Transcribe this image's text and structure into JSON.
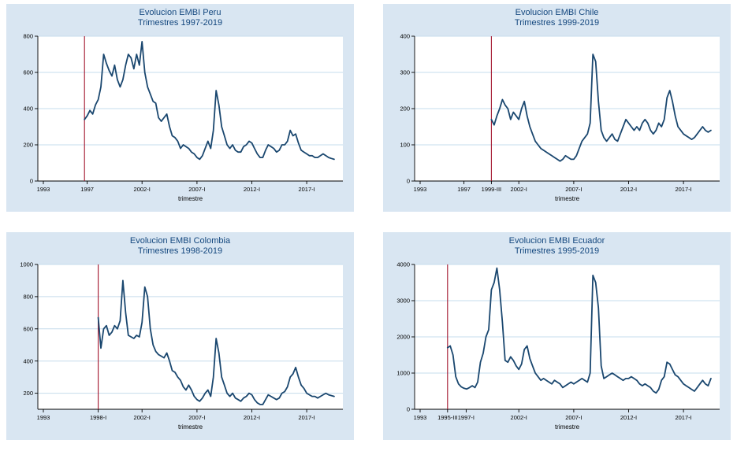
{
  "style": {
    "panel_bg": "#d9e6f2",
    "grid_color": "#c6dcec",
    "line_color": "#1a476f",
    "ref_color": "#a2132b",
    "axis_color": "#000000",
    "title_color": "#13477e"
  },
  "chart_data": [
    {
      "type": "line",
      "title": "Evolucion EMBI Peru",
      "subtitle": "Trimestres 1997-2019",
      "xlabel": "trimestre",
      "ylim": [
        0,
        800
      ],
      "yticks": [
        0,
        200,
        400,
        600,
        800
      ],
      "ytick_labels": [
        "0",
        "200",
        "400",
        "600",
        "800"
      ],
      "xlim": [
        1992.5,
        2020.3
      ],
      "xticks": [
        {
          "v": 1993,
          "label": "1993"
        },
        {
          "v": 1997,
          "label": "1997"
        },
        {
          "v": 2002,
          "label": "2002-I"
        },
        {
          "v": 2007,
          "label": "2007-I"
        },
        {
          "v": 2012,
          "label": "2012-I"
        },
        {
          "v": 2017,
          "label": "2017-I"
        }
      ],
      "ref_line": 1996.75,
      "legend": "none",
      "grid": "horizontal",
      "series": [
        {
          "name": "EMBI Peru",
          "x_start": 1996.75,
          "x_step": 0.25,
          "values": [
            340,
            360,
            390,
            370,
            420,
            450,
            520,
            700,
            650,
            610,
            580,
            640,
            560,
            520,
            560,
            640,
            700,
            680,
            620,
            700,
            640,
            770,
            600,
            520,
            480,
            440,
            430,
            350,
            330,
            350,
            370,
            300,
            250,
            240,
            220,
            180,
            200,
            190,
            180,
            160,
            150,
            130,
            120,
            140,
            180,
            220,
            180,
            280,
            500,
            420,
            300,
            250,
            200,
            180,
            200,
            170,
            160,
            160,
            190,
            200,
            220,
            210,
            180,
            150,
            130,
            130,
            170,
            200,
            190,
            180,
            160,
            170,
            200,
            200,
            220,
            280,
            250,
            260,
            210,
            170,
            160,
            150,
            140,
            140,
            130,
            130,
            140,
            150,
            140,
            130,
            125,
            120
          ]
        }
      ]
    },
    {
      "type": "line",
      "title": "Evolucion EMBI Chile",
      "subtitle": "Trimestres 1999-2019",
      "xlabel": "trimestre",
      "ylim": [
        0,
        400
      ],
      "yticks": [
        0,
        100,
        200,
        300,
        400
      ],
      "ytick_labels": [
        "0",
        "100",
        "200",
        "300",
        "400"
      ],
      "xlim": [
        1992.5,
        2020.3
      ],
      "xticks": [
        {
          "v": 1997,
          "label": "1997"
        },
        {
          "v": 1993,
          "label": "1993"
        },
        {
          "v": 1999.5,
          "label": "1999-III"
        },
        {
          "v": 2002,
          "label": "2002-I"
        },
        {
          "v": 2007,
          "label": "2007-I"
        },
        {
          "v": 2012,
          "label": "2012-I"
        },
        {
          "v": 2017,
          "label": "2017-I"
        }
      ],
      "ref_line": 1999.5,
      "legend": "none",
      "grid": "horizontal",
      "series": [
        {
          "name": "EMBI Chile",
          "x_start": 1999.5,
          "x_step": 0.25,
          "values": [
            170,
            155,
            180,
            200,
            225,
            210,
            200,
            170,
            190,
            180,
            170,
            200,
            220,
            180,
            150,
            130,
            110,
            100,
            90,
            85,
            80,
            75,
            70,
            65,
            60,
            55,
            60,
            70,
            65,
            60,
            60,
            70,
            90,
            110,
            120,
            130,
            160,
            350,
            330,
            220,
            140,
            120,
            110,
            120,
            130,
            115,
            110,
            130,
            150,
            170,
            160,
            150,
            140,
            150,
            140,
            160,
            170,
            160,
            140,
            130,
            140,
            160,
            150,
            170,
            230,
            250,
            220,
            180,
            150,
            140,
            130,
            125,
            120,
            115,
            120,
            130,
            140,
            150,
            140,
            135,
            140
          ]
        }
      ]
    },
    {
      "type": "line",
      "title": "Evolucion EMBI Colombia",
      "subtitle": "Trimestres 1998-2019",
      "xlabel": "trimestre",
      "ylim": [
        100,
        1000
      ],
      "yticks": [
        200,
        400,
        600,
        800,
        1000
      ],
      "ytick_labels": [
        "200",
        "400",
        "600",
        "800",
        "1000"
      ],
      "xlim": [
        1992.5,
        2020.3
      ],
      "xticks": [
        {
          "v": 1993,
          "label": "1993"
        },
        {
          "v": 1998,
          "label": "1998-I"
        },
        {
          "v": 2002,
          "label": "2002-I"
        },
        {
          "v": 2007,
          "label": "2007-I"
        },
        {
          "v": 2012,
          "label": "2012-I"
        },
        {
          "v": 2017,
          "label": "2017-I"
        }
      ],
      "ref_line": 1998.0,
      "legend": "none",
      "grid": "horizontal",
      "series": [
        {
          "name": "EMBI Colombia",
          "x_start": 1998.0,
          "x_step": 0.25,
          "values": [
            670,
            480,
            600,
            620,
            560,
            580,
            620,
            600,
            650,
            900,
            700,
            560,
            550,
            540,
            560,
            550,
            640,
            860,
            800,
            600,
            500,
            460,
            440,
            430,
            420,
            450,
            400,
            340,
            330,
            300,
            280,
            240,
            220,
            250,
            220,
            180,
            160,
            150,
            170,
            200,
            220,
            180,
            300,
            540,
            450,
            300,
            250,
            200,
            180,
            200,
            170,
            160,
            150,
            170,
            180,
            200,
            190,
            160,
            140,
            130,
            130,
            160,
            190,
            180,
            170,
            160,
            170,
            200,
            210,
            240,
            300,
            320,
            360,
            300,
            250,
            230,
            200,
            190,
            180,
            180,
            170,
            180,
            190,
            200,
            190,
            185,
            180
          ]
        }
      ]
    },
    {
      "type": "line",
      "title": "Evolucion EMBI Ecuador",
      "subtitle": "Trimestres 1995-2019",
      "xlabel": "trimestre",
      "ylim": [
        0,
        4000
      ],
      "yticks": [
        0,
        1000,
        2000,
        3000,
        4000
      ],
      "ytick_labels": [
        "0",
        "1000",
        "2000",
        "3000",
        "4000"
      ],
      "xlim": [
        1992.5,
        2020.3
      ],
      "xticks": [
        {
          "v": 1993,
          "label": "1993"
        },
        {
          "v": 1995.5,
          "label": "1995-III"
        },
        {
          "v": 1997.2,
          "label": "1997-I"
        },
        {
          "v": 2002,
          "label": "2002-I"
        },
        {
          "v": 2007,
          "label": "2007-I"
        },
        {
          "v": 2012,
          "label": "2012-I"
        },
        {
          "v": 2017,
          "label": "2017-I"
        }
      ],
      "ref_line": 1995.5,
      "legend": "none",
      "grid": "horizontal",
      "series": [
        {
          "name": "EMBI Ecuador",
          "x_start": 1995.5,
          "x_step": 0.25,
          "values": [
            1700,
            1750,
            1500,
            900,
            700,
            620,
            580,
            560,
            600,
            650,
            600,
            750,
            1300,
            1550,
            2000,
            2200,
            3300,
            3500,
            3900,
            3300,
            2400,
            1350,
            1300,
            1450,
            1350,
            1200,
            1100,
            1250,
            1650,
            1750,
            1400,
            1200,
            1000,
            900,
            800,
            850,
            800,
            750,
            700,
            800,
            750,
            700,
            600,
            650,
            700,
            750,
            700,
            750,
            800,
            850,
            800,
            750,
            1000,
            3700,
            3500,
            2800,
            1200,
            850,
            900,
            950,
            1000,
            950,
            900,
            850,
            800,
            850,
            850,
            900,
            850,
            800,
            700,
            650,
            700,
            650,
            600,
            500,
            450,
            550,
            800,
            900,
            1300,
            1250,
            1100,
            950,
            900,
            800,
            700,
            650,
            600,
            550,
            500,
            600,
            700,
            800,
            700,
            650,
            850
          ]
        }
      ]
    }
  ]
}
